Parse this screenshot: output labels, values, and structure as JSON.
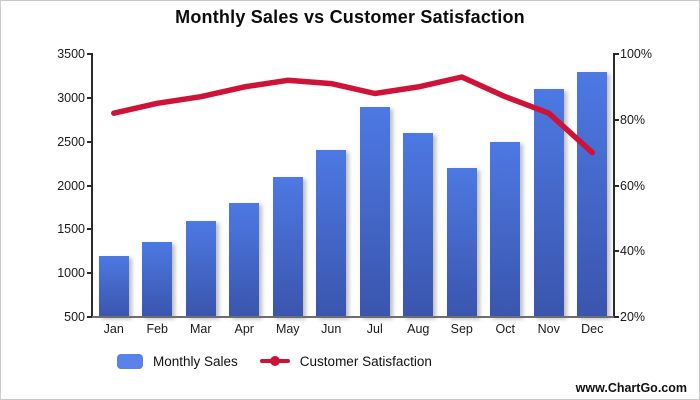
{
  "title": "Monthly Sales vs Customer Satisfaction",
  "watermark": "www.ChartGo.com",
  "legend": {
    "items": [
      {
        "label": "Monthly Sales",
        "type": "bar"
      },
      {
        "label": "Customer Satisfaction",
        "type": "line"
      }
    ]
  },
  "colors": {
    "bar_gradient_top": "#4d79e3",
    "bar_gradient_bottom": "#3a55ad",
    "legend_bar_swatch": "#5b82e8",
    "line": "#cf1237",
    "axis": "#2b2b2b"
  },
  "chart_data": {
    "type": "bar",
    "subtype": "combo-bar-line",
    "title": "Monthly Sales vs Customer Satisfaction",
    "categories": [
      "Jan",
      "Feb",
      "Mar",
      "Apr",
      "May",
      "Jun",
      "Jul",
      "Aug",
      "Sep",
      "Oct",
      "Nov",
      "Dec"
    ],
    "series": [
      {
        "name": "Monthly Sales",
        "type": "bar",
        "axis": "left",
        "values": [
          1200,
          1350,
          1600,
          1800,
          2100,
          2400,
          2900,
          2600,
          2200,
          2500,
          3100,
          3300
        ]
      },
      {
        "name": "Customer Satisfaction",
        "type": "line",
        "axis": "right",
        "unit": "%",
        "values": [
          82,
          85,
          87,
          90,
          92,
          91,
          88,
          90,
          93,
          87,
          82,
          70
        ]
      }
    ],
    "left_axis": {
      "min": 500,
      "max": 3500,
      "tick_labels": [
        "500",
        "1000",
        "1500",
        "2000",
        "2500",
        "3000",
        "3500"
      ]
    },
    "right_axis": {
      "min": 20,
      "max": 100,
      "tick_labels": [
        "20%",
        "40%",
        "60%",
        "80%",
        "100%"
      ]
    },
    "grid": false,
    "legend_position": "bottom",
    "xlabel": "",
    "ylabel": ""
  }
}
